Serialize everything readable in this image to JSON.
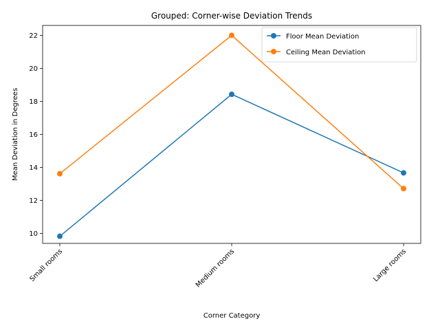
{
  "chart_data": {
    "type": "line",
    "title": "Grouped: Corner-wise Deviation Trends",
    "xlabel": "Corner Category",
    "ylabel": "Mean Deviation in Degrees",
    "categories": [
      "Small rooms",
      "Medium rooms",
      "Large rooms"
    ],
    "ylim": [
      9.4,
      22.6
    ],
    "yticks": [
      10,
      12,
      14,
      16,
      18,
      20,
      22
    ],
    "grid": false,
    "legend_position": "top-right",
    "series": [
      {
        "name": "Floor Mean Deviation",
        "color": "#1f77b4",
        "values": [
          9.83,
          18.43,
          13.67
        ]
      },
      {
        "name": "Ceiling Mean Deviation",
        "color": "#ff7f0e",
        "values": [
          13.62,
          22.0,
          12.72
        ]
      }
    ]
  }
}
